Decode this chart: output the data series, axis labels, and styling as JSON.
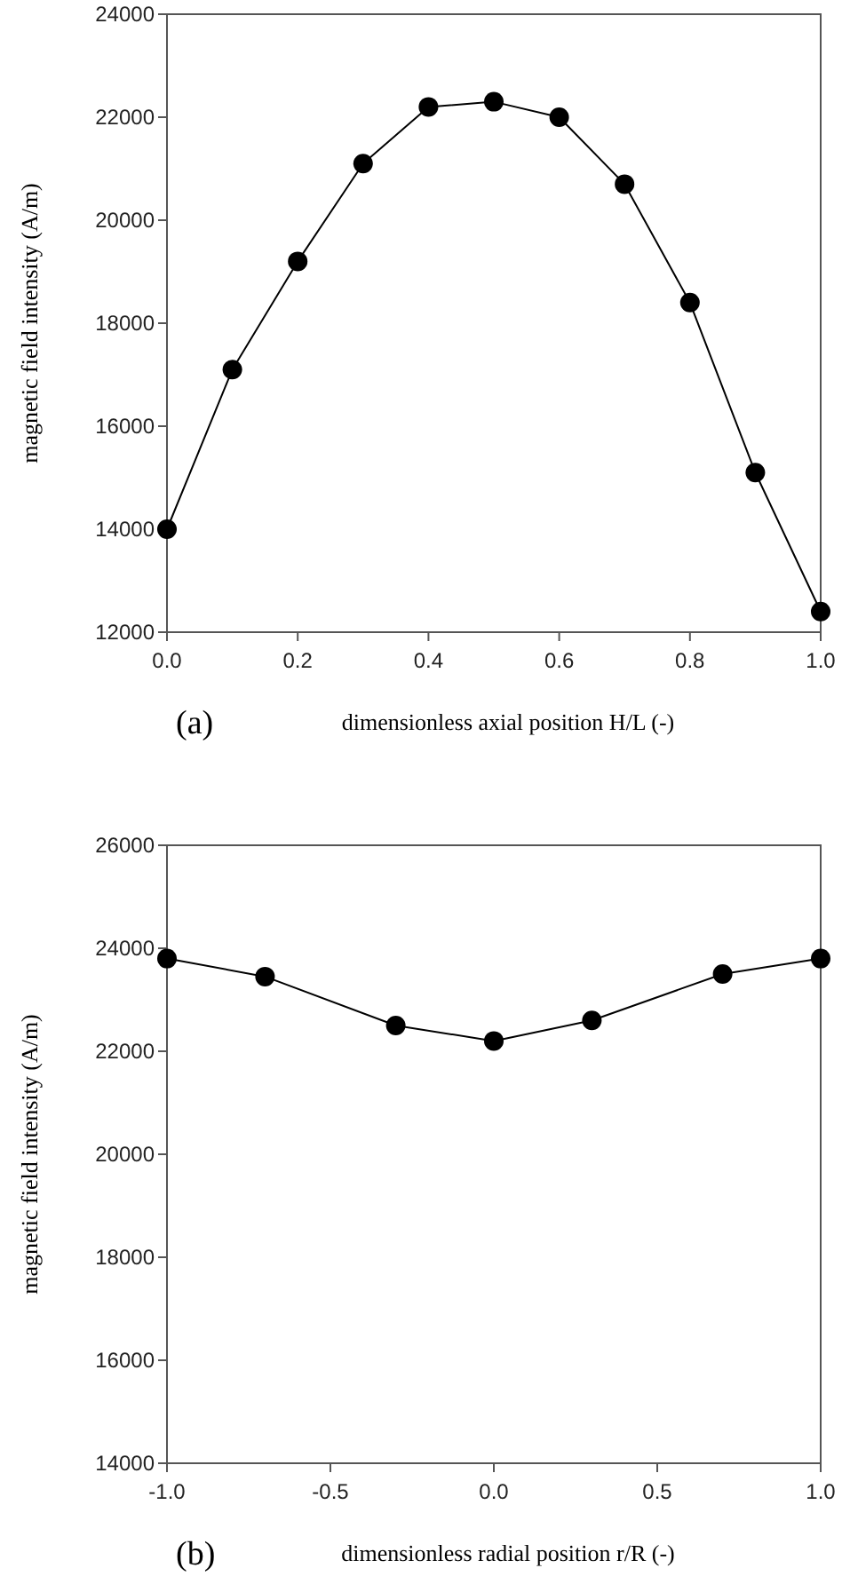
{
  "chart_data": [
    {
      "type": "line",
      "xlabel": "dimensionless axial position H/L (-)",
      "ylabel": "magnetic field intensity (A/m)",
      "annotations": [
        "(a)"
      ],
      "x": [
        0,
        0.1,
        0.2,
        0.3,
        0.4,
        0.5,
        0.6,
        0.7,
        0.8,
        0.9,
        1.0
      ],
      "series": [
        {
          "color": "#000000",
          "values": [
            14000,
            17100,
            19200,
            21100,
            22200,
            22300,
            22000,
            20700,
            18400,
            15100,
            12400
          ]
        }
      ],
      "xlim": [
        0,
        1
      ],
      "ylim": [
        12000,
        24000
      ],
      "xticks": [
        {
          "value": 0,
          "label": "0.0"
        },
        0.2,
        0.4,
        0.6,
        0.8,
        {
          "value": 1,
          "label": "1.0"
        }
      ],
      "yticks": [
        12000,
        14000,
        16000,
        18000,
        20000,
        22000,
        24000
      ],
      "marker": "circle",
      "line_style": "solid",
      "grid": false
    },
    {
      "type": "line",
      "xlabel": "dimensionless radial position r/R (-)",
      "ylabel": "magnetic field intensity (A/m)",
      "annotations": [
        "(b)"
      ],
      "x": [
        -1.0,
        -0.7,
        -0.3,
        0,
        0.3,
        0.7,
        1.0
      ],
      "series": [
        {
          "color": "#000000",
          "values": [
            23800,
            23450,
            22500,
            22200,
            22600,
            23500,
            23800
          ]
        }
      ],
      "xlim": [
        -1,
        1
      ],
      "ylim": [
        14000,
        26000
      ],
      "xticks": [
        {
          "value": -1,
          "label": "-1.0"
        },
        {
          "value": -0.5,
          "label": "-0.5"
        },
        {
          "value": 0,
          "label": "0.0"
        },
        0.5,
        {
          "value": 1,
          "label": "1.0"
        }
      ],
      "yticks": [
        14000,
        16000,
        18000,
        20000,
        22000,
        24000,
        26000
      ],
      "marker": "circle",
      "line_style": "solid",
      "grid": false
    }
  ]
}
